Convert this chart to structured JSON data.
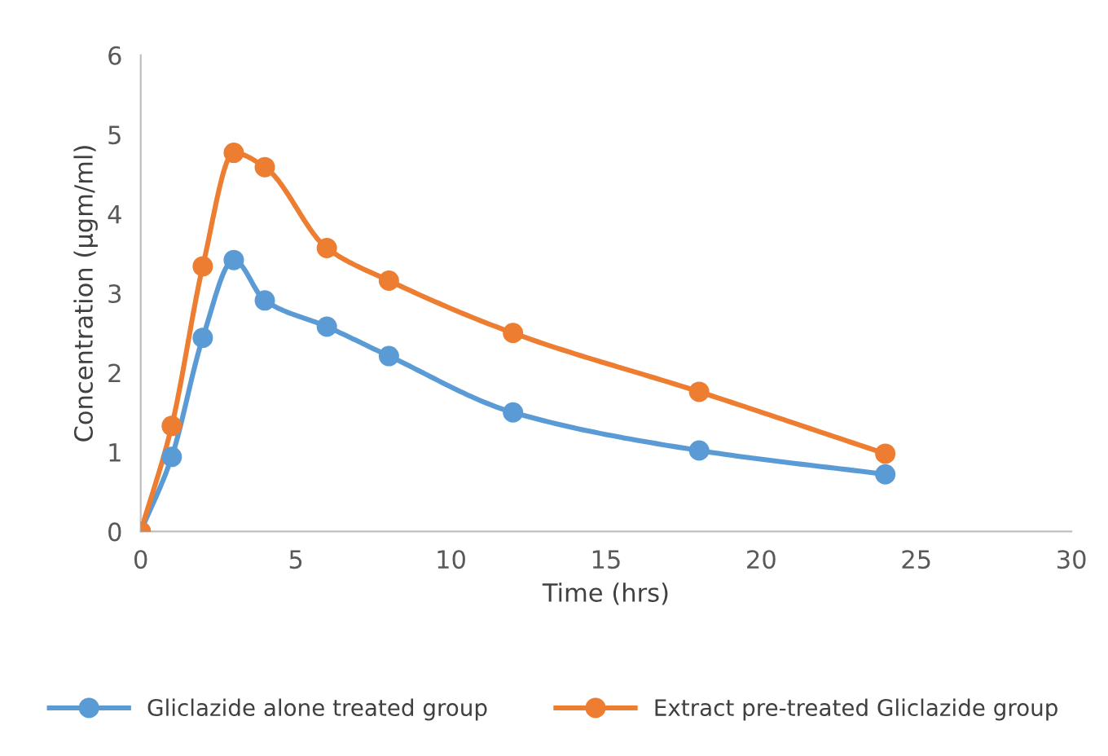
{
  "chart_data": {
    "type": "line",
    "xlabel": "Time (hrs)",
    "ylabel": "Concentration (µgm/ml)",
    "x": [
      0,
      1,
      2,
      3,
      4,
      6,
      8,
      12,
      18,
      24
    ],
    "series": [
      {
        "name": "Gliclazide alone treated group",
        "color": "#5b9bd5",
        "values": [
          0,
          0.94,
          2.44,
          3.42,
          2.91,
          2.58,
          2.21,
          1.5,
          1.02,
          0.72
        ]
      },
      {
        "name": "Extract pre-treated Gliclazide group",
        "color": "#ed7d31",
        "values": [
          0,
          1.33,
          3.34,
          4.77,
          4.59,
          3.57,
          3.16,
          2.5,
          1.76,
          0.98
        ]
      }
    ],
    "xlim": [
      0,
      30
    ],
    "xticks": [
      0,
      5,
      10,
      15,
      20,
      25,
      30
    ],
    "ylim": [
      0,
      6
    ],
    "yticks": [
      0,
      1,
      2,
      3,
      4,
      5,
      6
    ],
    "grid": false,
    "legend": "bottom",
    "marker": "circle",
    "line_style": "solid"
  }
}
